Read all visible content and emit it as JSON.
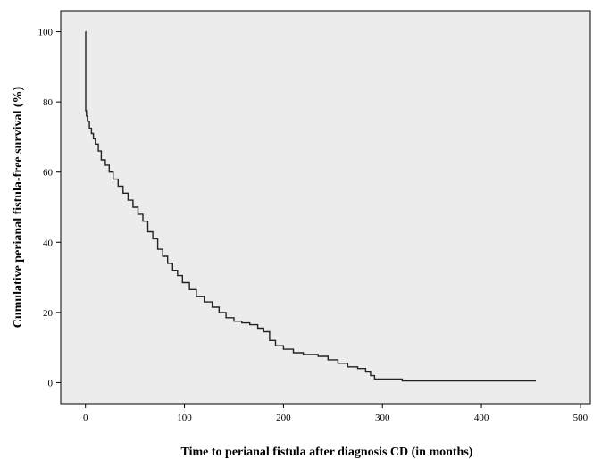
{
  "chart_data": {
    "type": "line",
    "title": "",
    "xlabel": "Time to perianal fistula after diagnosis CD (in months)",
    "ylabel": "Cumulative perianal fistula-free survival (%)",
    "xlim": [
      -25,
      510
    ],
    "ylim": [
      -6,
      106
    ],
    "xticks": [
      0,
      100,
      200,
      300,
      400,
      500
    ],
    "yticks": [
      0,
      20,
      40,
      60,
      80,
      100
    ],
    "grid": false,
    "legend": "none",
    "plot_background": "#ececec",
    "line_color": "#222222",
    "series": [
      {
        "step": true,
        "x": [
          0,
          0.3,
          1,
          2,
          4,
          6,
          8,
          10,
          13,
          16,
          20,
          24,
          28,
          33,
          38,
          43,
          48,
          53,
          58,
          63,
          68,
          73,
          78,
          83,
          88,
          93,
          98,
          105,
          112,
          120,
          128,
          135,
          142,
          150,
          158,
          166,
          174,
          180,
          186,
          192,
          200,
          210,
          220,
          235,
          245,
          255,
          265,
          275,
          283,
          288,
          292,
          300,
          320,
          350,
          400,
          455
        ],
        "y": [
          100,
          77.5,
          76,
          74.5,
          72.5,
          71,
          69.5,
          68,
          66,
          63.5,
          62,
          60,
          58,
          56,
          54,
          52,
          50,
          48,
          46,
          43,
          41,
          38,
          36,
          34,
          32,
          30.5,
          28.5,
          26.5,
          24.5,
          23,
          21.5,
          20,
          18.5,
          17.5,
          17,
          16.5,
          15.5,
          14.5,
          12,
          10.5,
          9.5,
          8.5,
          8,
          7.5,
          6.5,
          5.5,
          4.5,
          4,
          3,
          2,
          1,
          1,
          0.5,
          0.5,
          0.5,
          0.5
        ]
      }
    ]
  }
}
